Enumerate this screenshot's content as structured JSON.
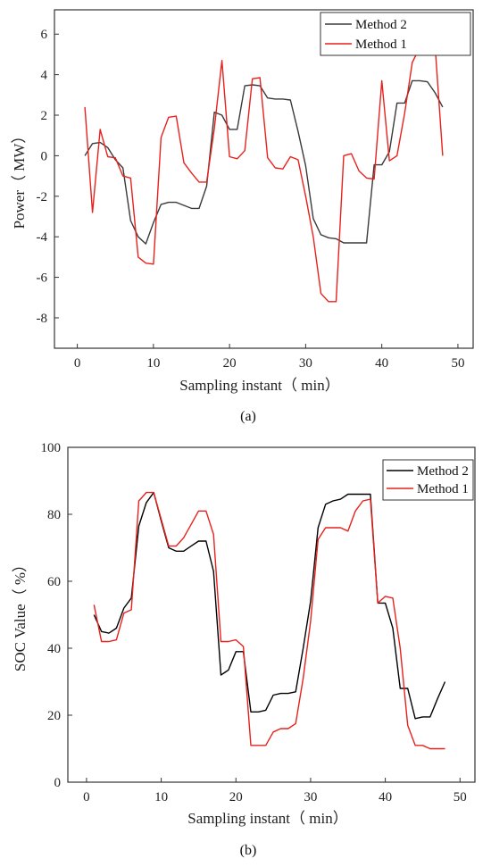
{
  "chart_data": [
    {
      "type": "line",
      "panel_label": "(a)",
      "title": "",
      "xlabel": "Sampling instant（ min）",
      "ylabel": "Power（ MW）",
      "xlim": [
        -3,
        52
      ],
      "ylim": [
        -9.5,
        7.2
      ],
      "xticks": [
        0,
        10,
        20,
        30,
        40,
        50
      ],
      "yticks": [
        -8,
        -6,
        -4,
        -2,
        0,
        2,
        4,
        6
      ],
      "grid": false,
      "legend_position": "top-right",
      "series": [
        {
          "name": "Method 2",
          "color": "#3a3a3a",
          "x": [
            1,
            2,
            3,
            4,
            5,
            6,
            7,
            8,
            9,
            10,
            11,
            12,
            13,
            14,
            15,
            16,
            17,
            18,
            19,
            20,
            21,
            22,
            23,
            24,
            25,
            26,
            27,
            28,
            29,
            30,
            31,
            32,
            33,
            34,
            35,
            36,
            37,
            38,
            39,
            40,
            41,
            42,
            43,
            44,
            45,
            46,
            47,
            48
          ],
          "y": [
            0,
            0.6,
            0.65,
            0.4,
            -0.2,
            -0.6,
            -3.2,
            -4.0,
            -4.35,
            -3.3,
            -2.4,
            -2.3,
            -2.3,
            -2.45,
            -2.6,
            -2.6,
            -1.5,
            2.15,
            2.0,
            1.3,
            1.3,
            3.45,
            3.5,
            3.45,
            2.85,
            2.8,
            2.8,
            2.75,
            1.2,
            -0.5,
            -3.1,
            -3.9,
            -4.05,
            -4.1,
            -4.3,
            -4.3,
            -4.3,
            -4.3,
            -0.45,
            -0.45,
            0.2,
            2.6,
            2.6,
            3.7,
            3.7,
            3.65,
            3.1,
            2.4
          ]
        },
        {
          "name": "Method 1",
          "color": "#e8211c",
          "x": [
            1,
            2,
            3,
            4,
            5,
            6,
            7,
            8,
            9,
            10,
            11,
            12,
            13,
            14,
            15,
            16,
            17,
            18,
            19,
            20,
            21,
            22,
            23,
            24,
            25,
            26,
            27,
            28,
            29,
            30,
            31,
            32,
            33,
            34,
            35,
            36,
            37,
            38,
            39,
            40,
            41,
            42,
            43,
            44,
            45,
            46,
            47,
            48
          ],
          "y": [
            2.4,
            -2.8,
            1.3,
            -0.05,
            -0.1,
            -1.0,
            -1.1,
            -5.0,
            -5.3,
            -5.35,
            0.9,
            1.9,
            1.95,
            -0.35,
            -0.85,
            -1.3,
            -1.3,
            1.35,
            4.7,
            -0.05,
            -0.15,
            0.25,
            3.8,
            3.85,
            -0.1,
            -0.6,
            -0.65,
            -0.05,
            -0.2,
            -2.0,
            -4.0,
            -6.8,
            -7.2,
            -7.2,
            0,
            0.1,
            -0.75,
            -1.1,
            -1.15,
            3.7,
            -0.25,
            0,
            2.1,
            4.6,
            5.35,
            5.35,
            5.4,
            0
          ]
        }
      ]
    },
    {
      "type": "line",
      "panel_label": "(b)",
      "title": "",
      "xlabel": "Sampling instant（ min）",
      "ylabel": "SOC Value（ %）",
      "xlim": [
        -2.5,
        52
      ],
      "ylim": [
        0,
        100
      ],
      "xticks": [
        0,
        10,
        20,
        30,
        40,
        50
      ],
      "yticks": [
        0,
        20,
        40,
        60,
        80,
        100
      ],
      "grid": false,
      "legend_position": "top-right",
      "series": [
        {
          "name": "Method 2",
          "color": "#000000",
          "x": [
            1,
            2,
            3,
            4,
            5,
            6,
            7,
            8,
            9,
            10,
            11,
            12,
            13,
            14,
            15,
            16,
            17,
            18,
            19,
            20,
            21,
            22,
            23,
            24,
            25,
            26,
            27,
            28,
            29,
            30,
            31,
            32,
            33,
            34,
            35,
            36,
            37,
            38,
            39,
            40,
            41,
            42,
            43,
            44,
            45,
            46,
            47,
            48
          ],
          "y": [
            50,
            45,
            44.5,
            46,
            52,
            55,
            76.5,
            83.5,
            86.5,
            78,
            70,
            69,
            69,
            70.5,
            72,
            72,
            63,
            32,
            33.5,
            39,
            39,
            21,
            21,
            21.5,
            26,
            26.5,
            26.5,
            27,
            40,
            54,
            76,
            83,
            84,
            84.5,
            86,
            86,
            86,
            86,
            53.5,
            53.5,
            46,
            28,
            28,
            19,
            19.5,
            19.5,
            25,
            30
          ]
        },
        {
          "name": "Method 1",
          "color": "#e8211c",
          "x": [
            1,
            2,
            3,
            4,
            5,
            6,
            7,
            8,
            9,
            10,
            11,
            12,
            13,
            14,
            15,
            16,
            17,
            18,
            19,
            20,
            21,
            22,
            23,
            24,
            25,
            26,
            27,
            28,
            29,
            30,
            31,
            32,
            33,
            34,
            35,
            36,
            37,
            38,
            39,
            40,
            41,
            42,
            43,
            44,
            45,
            46,
            47,
            48
          ],
          "y": [
            53,
            42,
            42,
            42.5,
            50.5,
            51.5,
            84,
            86.5,
            86.5,
            78.5,
            70.5,
            70.5,
            73,
            77,
            81,
            81,
            74,
            42,
            42,
            42.5,
            40.5,
            11,
            11,
            11,
            15,
            16,
            16,
            17.5,
            31,
            48,
            72.5,
            76,
            76,
            76,
            75,
            81,
            84,
            84.5,
            53.5,
            55.5,
            55,
            40,
            17,
            11,
            11,
            10,
            10,
            10
          ]
        }
      ]
    }
  ]
}
